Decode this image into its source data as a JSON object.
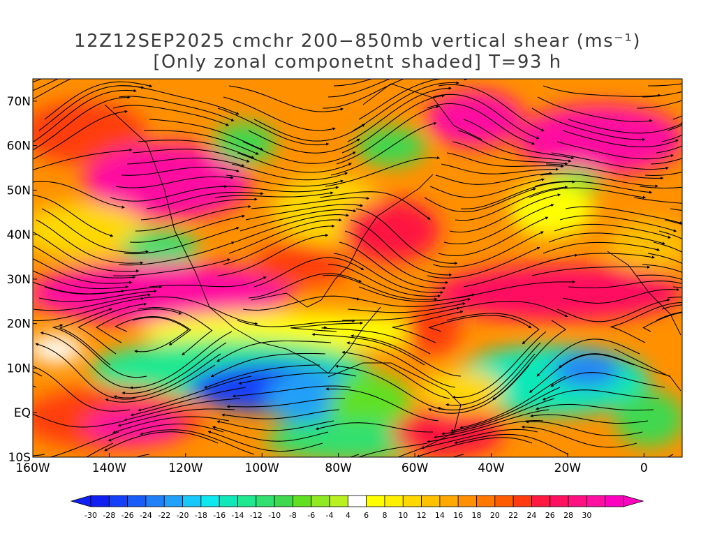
{
  "title": {
    "line1": "12Z12SEP2025 cmchr 200−850mb vertical shear (ms⁻¹)",
    "line2": "[Only zonal componetnt shaded] T=93 h"
  },
  "map": {
    "lon_range": [
      -160,
      10
    ],
    "lat_range": [
      -10,
      75
    ],
    "lat_labels": [
      "10S",
      "EQ",
      "10N",
      "20N",
      "30N",
      "40N",
      "50N",
      "60N",
      "70N"
    ],
    "lon_labels": [
      "160W",
      "140W",
      "120W",
      "100W",
      "80W",
      "60W",
      "40W",
      "20W",
      "0"
    ],
    "shading": "zonal component of 200-850mb vertical shear",
    "overlay": "shear streamlines with arrowheads",
    "colorbar_labels": [
      "-30",
      "-28",
      "-26",
      "-24",
      "-22",
      "-20",
      "-18",
      "-16",
      "-14",
      "-12",
      "-10",
      "-8",
      "-6",
      "-4",
      "4",
      "6",
      "8",
      "10",
      "12",
      "14",
      "16",
      "18",
      "20",
      "22",
      "24",
      "26",
      "28",
      "30"
    ],
    "colorbar_colors": [
      "#1020f0",
      "#1440f8",
      "#1a5cf8",
      "#2080f8",
      "#20a0f8",
      "#18c8f8",
      "#10e8f0",
      "#10e8b8",
      "#20e890",
      "#30e070",
      "#40d850",
      "#60e020",
      "#90e820",
      "#b8f020",
      "#ffffff",
      "#ffff00",
      "#fff000",
      "#ffd800",
      "#ffc000",
      "#ffa800",
      "#ff9000",
      "#ff7800",
      "#ff5c00",
      "#ff3c10",
      "#ff1840",
      "#ff1060",
      "#ff1080",
      "#ff10a0",
      "#ff00c0"
    ]
  }
}
